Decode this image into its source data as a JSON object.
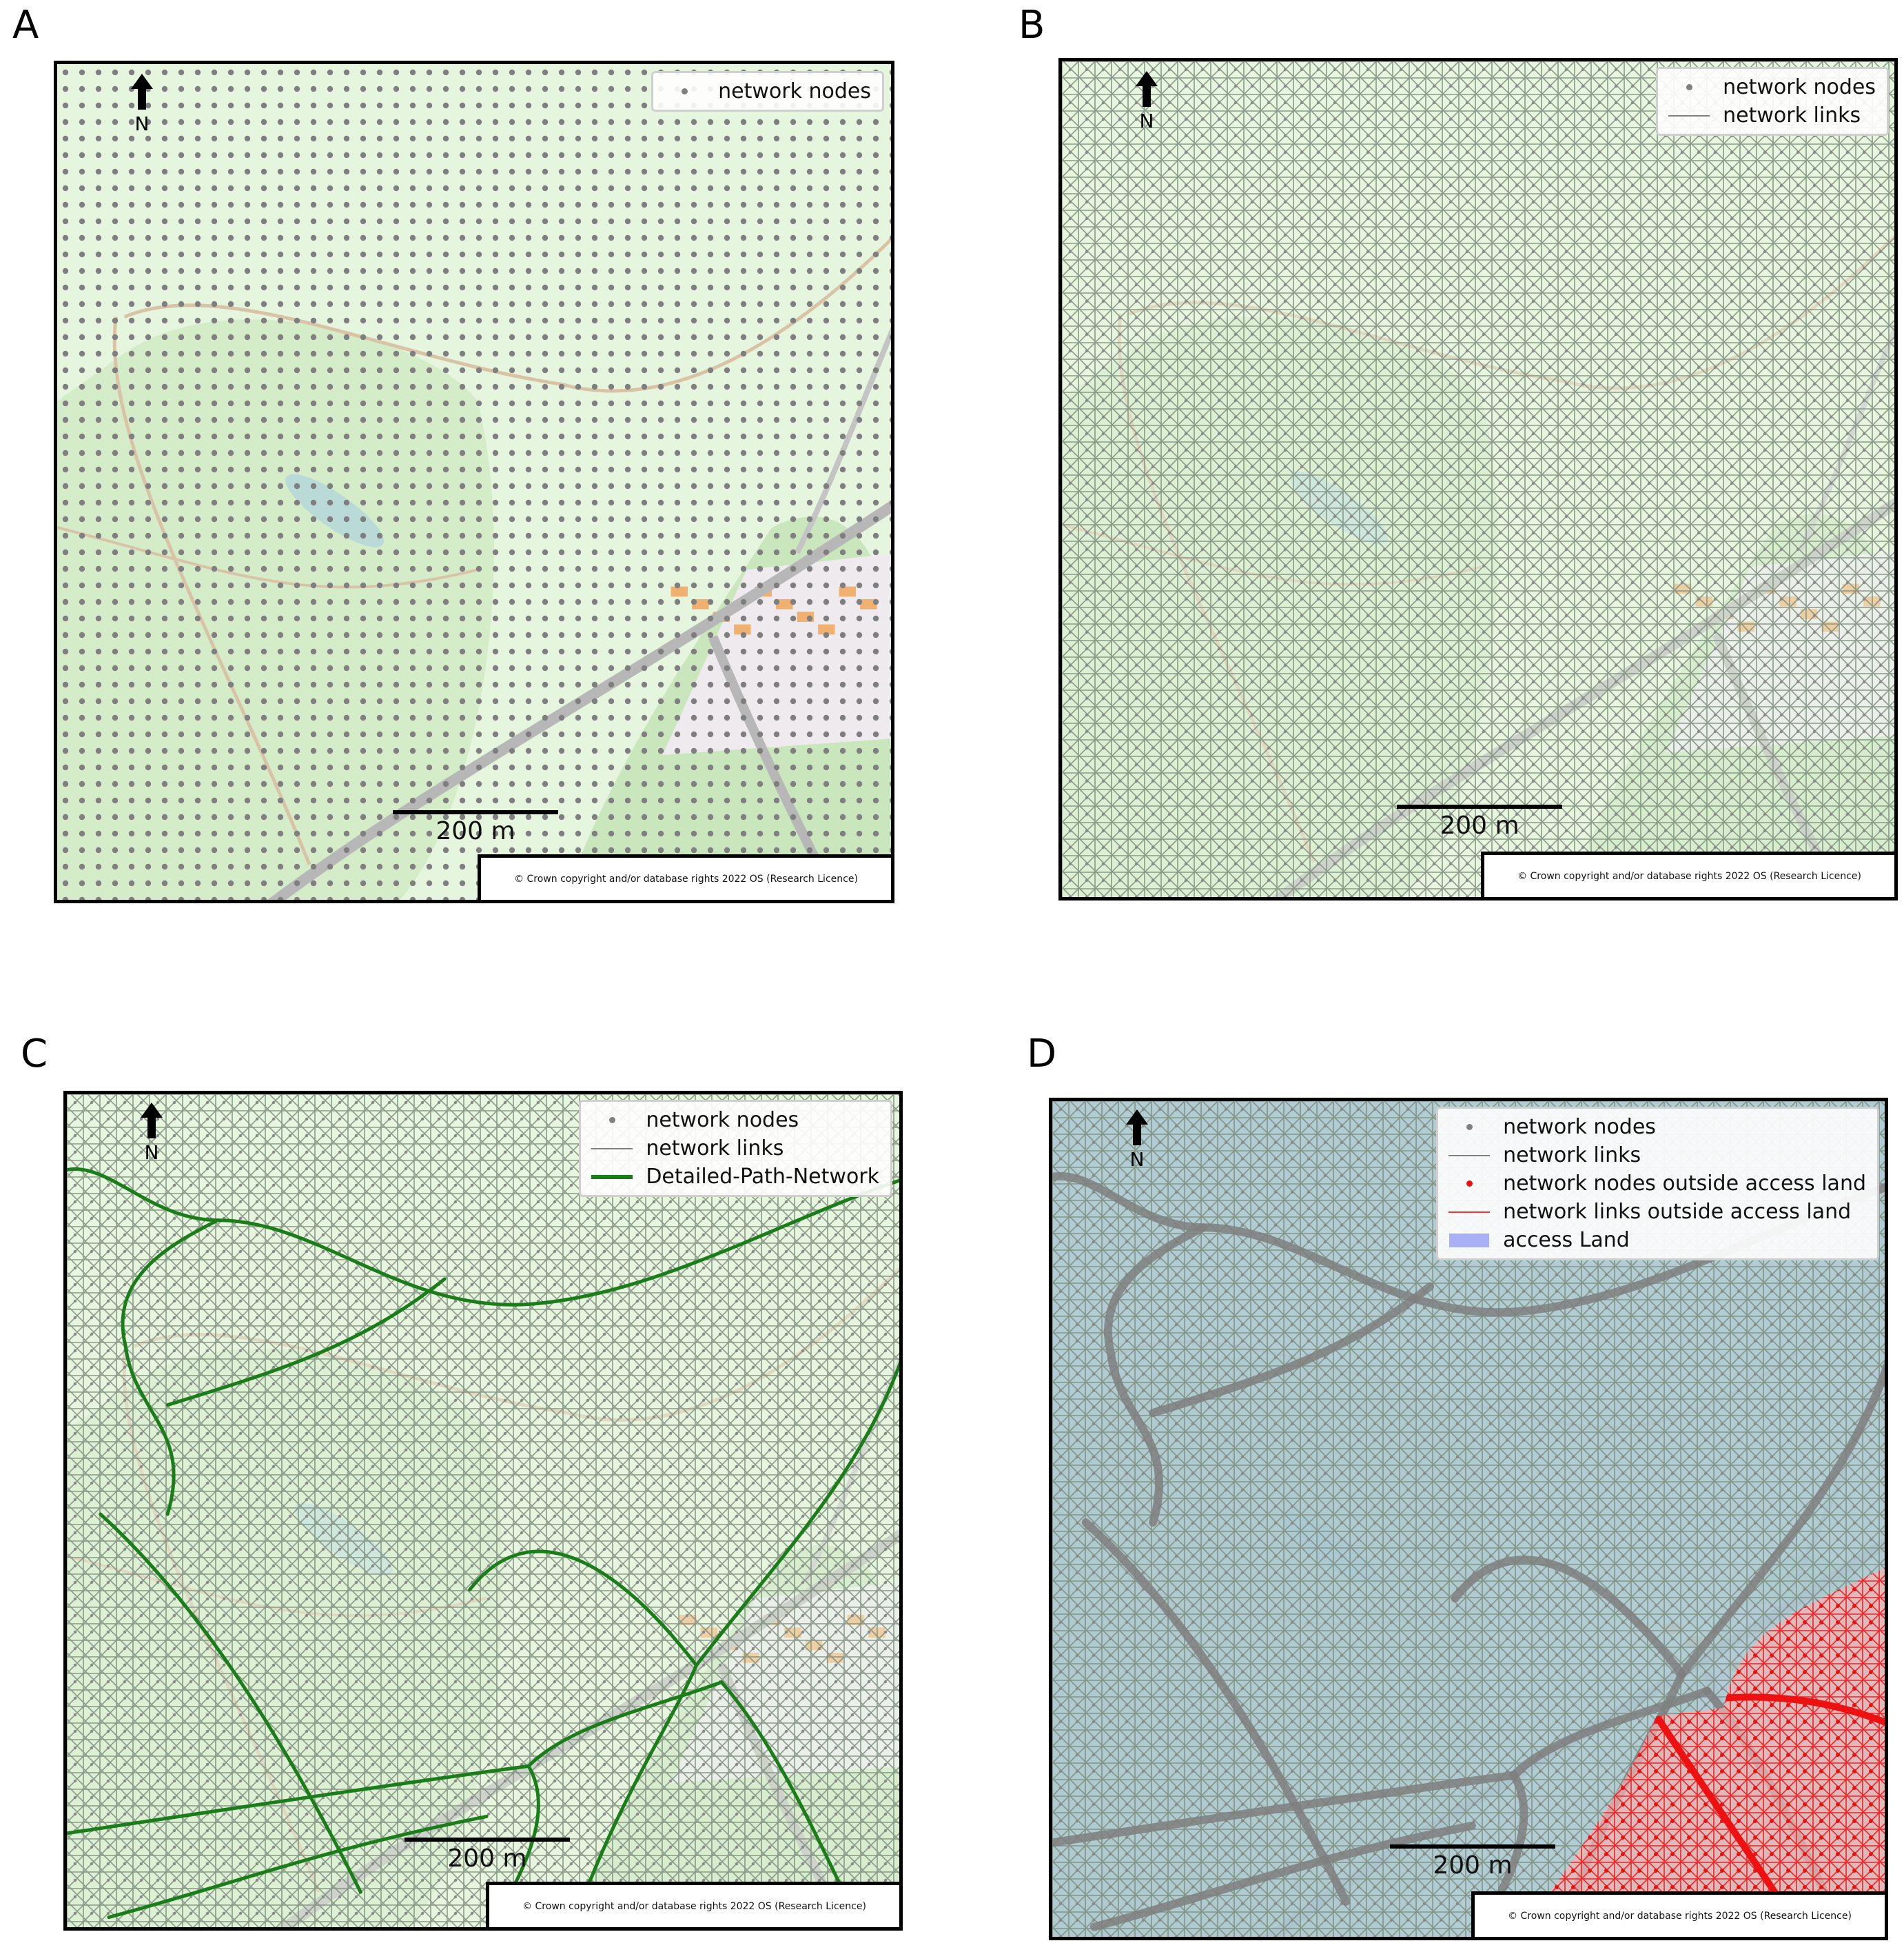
{
  "panels": [
    {
      "letter": "A",
      "legend": [
        {
          "type": "dot",
          "color": "#808080",
          "label": "network nodes"
        }
      ],
      "mesh": "nodes",
      "scale_label": "200 m",
      "north_label": "N",
      "credit": "© Crown copyright and/or database rights 2022 OS (Research Licence)"
    },
    {
      "letter": "B",
      "legend": [
        {
          "type": "dot",
          "color": "#808080",
          "label": "network nodes"
        },
        {
          "type": "line",
          "color": "#808080",
          "label": "network links"
        }
      ],
      "mesh": "links",
      "scale_label": "200 m",
      "north_label": "N",
      "credit": "© Crown copyright and/or database rights 2022 OS (Research Licence)"
    },
    {
      "letter": "C",
      "legend": [
        {
          "type": "dot",
          "color": "#808080",
          "label": "network nodes"
        },
        {
          "type": "line",
          "color": "#808080",
          "label": "network links"
        },
        {
          "type": "thickline",
          "color": "#1a7d1a",
          "label": "Detailed-Path-Network"
        }
      ],
      "mesh": "links",
      "paths_color": "#1a7d1a",
      "scale_label": "200 m",
      "north_label": "N",
      "credit": "© Crown copyright and/or database rights 2022 OS (Research Licence)"
    },
    {
      "letter": "D",
      "legend": [
        {
          "type": "dot",
          "color": "#808080",
          "label": "network nodes"
        },
        {
          "type": "line",
          "color": "#808080",
          "label": "network links"
        },
        {
          "type": "dot",
          "color": "#ee1111",
          "label": "network nodes outside access land"
        },
        {
          "type": "line",
          "color": "#ee3333",
          "label": "network links outside access land"
        },
        {
          "type": "patch",
          "color": "#aab0f5",
          "label": "access Land"
        }
      ],
      "mesh": "links",
      "access_color": "#9fbfcf",
      "outside_color": "#ee1111",
      "scale_label": "200 m",
      "north_label": "N",
      "credit": "© Crown copyright and/or database rights 2022 OS (Research Licence)"
    }
  ]
}
